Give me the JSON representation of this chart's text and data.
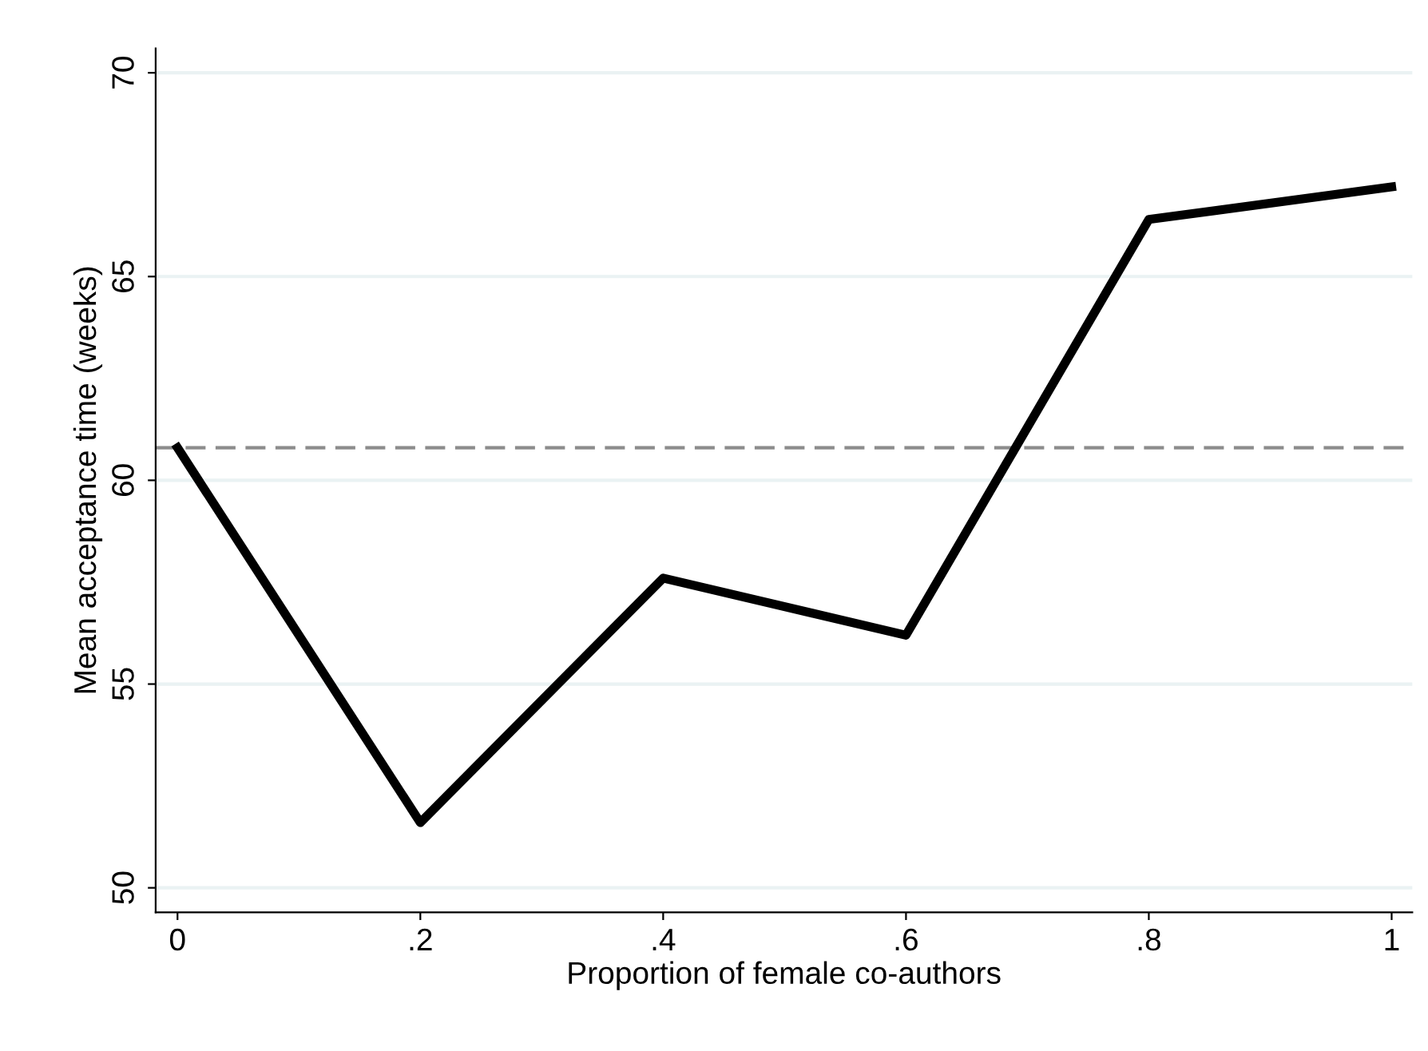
{
  "chart_data": {
    "type": "line",
    "xlabel": "Proportion of female co-authors",
    "ylabel": "Mean acceptance time (weeks)",
    "x": [
      0,
      0.2,
      0.4,
      0.6,
      0.8,
      1
    ],
    "series": [
      {
        "color": "#000000",
        "values": [
          60.8,
          51.6,
          57.6,
          56.2,
          66.4,
          67.2
        ]
      }
    ],
    "xlim": [
      -0.018,
      1.017
    ],
    "xticks": [
      {
        "value": 0,
        "label": "0"
      },
      {
        "value": 0.2,
        "label": ".2"
      },
      {
        "value": 0.4,
        "label": ".4"
      },
      {
        "value": 0.6,
        "label": ".6"
      },
      {
        "value": 0.8,
        "label": ".8"
      },
      {
        "value": 1,
        "label": "1"
      }
    ],
    "ylim": [
      49.4,
      70.6
    ],
    "yticks": [
      50,
      55,
      60,
      65,
      70
    ],
    "ref_lines": [
      {
        "axis": "y",
        "value": 60.8,
        "color": "#8c8c8c",
        "line_style": "dashed"
      }
    ],
    "grid": "y",
    "legend": false,
    "marker": "none",
    "line_style": "solid"
  }
}
